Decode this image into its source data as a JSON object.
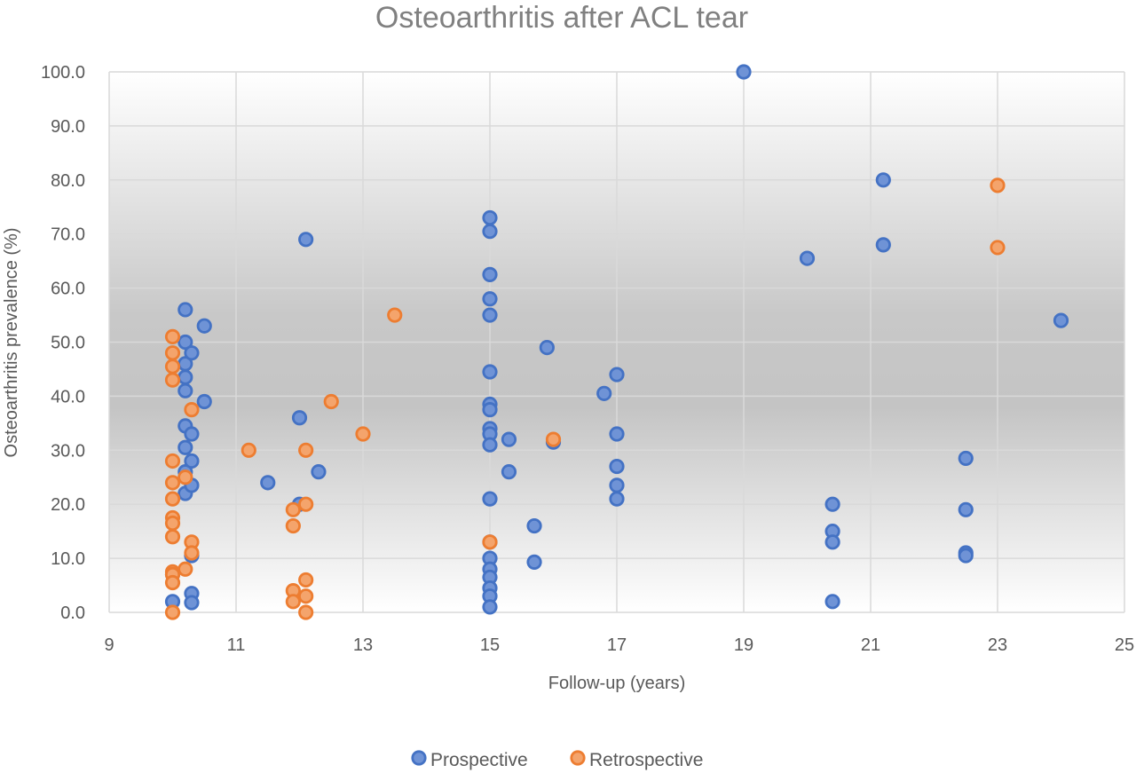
{
  "chart_data": {
    "type": "scatter",
    "title": "Osteoarthritis after ACL tear",
    "xlabel": "Follow-up (years)",
    "ylabel": "Osteoarthritis prevalence (%)",
    "xlim": [
      9,
      25
    ],
    "ylim": [
      0,
      100
    ],
    "x_ticks": [
      9,
      11,
      13,
      15,
      17,
      19,
      21,
      23,
      25
    ],
    "x_tick_labels": [
      "9",
      "11",
      "13",
      "15",
      "17",
      "19",
      "21",
      "23",
      "25"
    ],
    "y_ticks": [
      0,
      10,
      20,
      30,
      40,
      50,
      60,
      70,
      80,
      90,
      100
    ],
    "y_tick_labels": [
      "0.0",
      "10.0",
      "20.0",
      "30.0",
      "40.0",
      "50.0",
      "60.0",
      "70.0",
      "80.0",
      "90.0",
      "100.0"
    ],
    "grid": true,
    "legend_position": "bottom",
    "series": [
      {
        "name": "Prospective",
        "color": "#4472C4",
        "fill": "#6F93D6",
        "points": [
          [
            10,
            2
          ],
          [
            10,
            7
          ],
          [
            10.2,
            56
          ],
          [
            10.2,
            50
          ],
          [
            10.2,
            46
          ],
          [
            10.2,
            43.5
          ],
          [
            10.2,
            41
          ],
          [
            10.2,
            34.5
          ],
          [
            10.2,
            30.5
          ],
          [
            10.2,
            26
          ],
          [
            10.2,
            22
          ],
          [
            10.3,
            48
          ],
          [
            10.3,
            33
          ],
          [
            10.3,
            28
          ],
          [
            10.3,
            23.5
          ],
          [
            10.3,
            10.5
          ],
          [
            10.3,
            3.5
          ],
          [
            10.3,
            1.8
          ],
          [
            10.5,
            53
          ],
          [
            10.5,
            39
          ],
          [
            11.5,
            24
          ],
          [
            12,
            36
          ],
          [
            12,
            20
          ],
          [
            12.1,
            69
          ],
          [
            12.3,
            26
          ],
          [
            15,
            73
          ],
          [
            15,
            70.5
          ],
          [
            15,
            62.5
          ],
          [
            15,
            58
          ],
          [
            15,
            55
          ],
          [
            15,
            44.5
          ],
          [
            15,
            38.5
          ],
          [
            15,
            37.5
          ],
          [
            15,
            34
          ],
          [
            15,
            33
          ],
          [
            15,
            31
          ],
          [
            15,
            21
          ],
          [
            15,
            13
          ],
          [
            15,
            10
          ],
          [
            15,
            8
          ],
          [
            15,
            6.5
          ],
          [
            15,
            4.5
          ],
          [
            15,
            3
          ],
          [
            15,
            1
          ],
          [
            15.3,
            32
          ],
          [
            15.3,
            26
          ],
          [
            15.7,
            16
          ],
          [
            15.7,
            9.3
          ],
          [
            15.9,
            49
          ],
          [
            16,
            31.5
          ],
          [
            16.8,
            40.5
          ],
          [
            17,
            44
          ],
          [
            17,
            33
          ],
          [
            17,
            27
          ],
          [
            17,
            23.5
          ],
          [
            17,
            21
          ],
          [
            19,
            100
          ],
          [
            20,
            65.5
          ],
          [
            20.4,
            20
          ],
          [
            20.4,
            15
          ],
          [
            20.4,
            13
          ],
          [
            20.4,
            2
          ],
          [
            21.2,
            80
          ],
          [
            21.2,
            68
          ],
          [
            22.5,
            28.5
          ],
          [
            22.5,
            19
          ],
          [
            22.5,
            11
          ],
          [
            22.5,
            10.5
          ],
          [
            24,
            54
          ]
        ]
      },
      {
        "name": "Retrospective",
        "color": "#ED7D31",
        "fill": "#F4A46C",
        "points": [
          [
            10,
            51
          ],
          [
            10,
            48
          ],
          [
            10,
            45.5
          ],
          [
            10,
            43
          ],
          [
            10,
            28
          ],
          [
            10,
            24
          ],
          [
            10,
            21
          ],
          [
            10,
            17.5
          ],
          [
            10,
            16.5
          ],
          [
            10,
            14
          ],
          [
            10,
            7.5
          ],
          [
            10,
            7
          ],
          [
            10,
            5.5
          ],
          [
            10,
            0
          ],
          [
            10.2,
            25
          ],
          [
            10.2,
            8
          ],
          [
            10.3,
            37.5
          ],
          [
            10.3,
            13
          ],
          [
            10.3,
            11
          ],
          [
            11.2,
            30
          ],
          [
            11.9,
            19
          ],
          [
            11.9,
            16
          ],
          [
            11.9,
            4
          ],
          [
            11.9,
            2
          ],
          [
            12.1,
            30
          ],
          [
            12.1,
            20
          ],
          [
            12.1,
            6
          ],
          [
            12.1,
            3
          ],
          [
            12.1,
            0
          ],
          [
            12.5,
            39
          ],
          [
            13,
            33
          ],
          [
            13.5,
            55
          ],
          [
            15,
            13
          ],
          [
            16,
            32
          ],
          [
            23,
            79
          ],
          [
            23,
            67.5
          ]
        ]
      }
    ]
  }
}
